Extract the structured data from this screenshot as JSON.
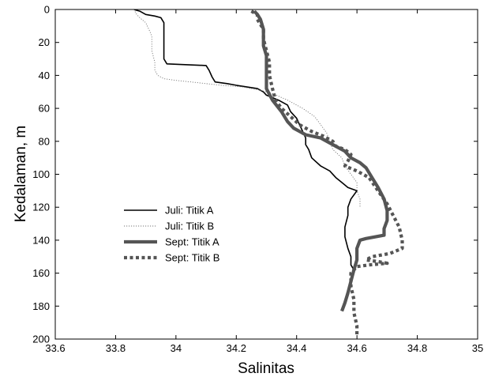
{
  "chart_data": {
    "type": "line",
    "xlabel": "Salinitas",
    "ylabel": "Kedalaman, m",
    "xlim": [
      33.6,
      35
    ],
    "ylim": [
      200,
      0
    ],
    "y_inverted": true,
    "grid": false,
    "legend_position": "left-center",
    "xticks": [
      "33.6",
      "33.8",
      "34",
      "34.2",
      "34.4",
      "34.6",
      "34.8",
      "35"
    ],
    "yticks": [
      "0",
      "20",
      "40",
      "60",
      "80",
      "100",
      "120",
      "140",
      "160",
      "180",
      "200"
    ],
    "series": [
      {
        "name": "Juli: Titik A",
        "color": "#000000",
        "style": "solid-thin",
        "points": [
          [
            33.86,
            0
          ],
          [
            33.88,
            1
          ],
          [
            33.89,
            2
          ],
          [
            33.9,
            3
          ],
          [
            33.93,
            4
          ],
          [
            33.95,
            5
          ],
          [
            33.96,
            8
          ],
          [
            33.96,
            15
          ],
          [
            33.96,
            30
          ],
          [
            33.97,
            33
          ],
          [
            34.1,
            34
          ],
          [
            34.11,
            37
          ],
          [
            34.12,
            41
          ],
          [
            34.13,
            44
          ],
          [
            34.17,
            45
          ],
          [
            34.2,
            46
          ],
          [
            34.27,
            48
          ],
          [
            34.29,
            50
          ],
          [
            34.3,
            52
          ],
          [
            34.34,
            55
          ],
          [
            34.37,
            58
          ],
          [
            34.38,
            62
          ],
          [
            34.4,
            66
          ],
          [
            34.41,
            70
          ],
          [
            34.42,
            74
          ],
          [
            34.43,
            78
          ],
          [
            34.43,
            82
          ],
          [
            34.44,
            85
          ],
          [
            34.45,
            90
          ],
          [
            34.48,
            95
          ],
          [
            34.51,
            98
          ],
          [
            34.53,
            102
          ],
          [
            34.55,
            105
          ],
          [
            34.57,
            108
          ],
          [
            34.6,
            110
          ],
          [
            34.58,
            115
          ],
          [
            34.57,
            120
          ],
          [
            34.57,
            125
          ],
          [
            34.56,
            132
          ],
          [
            34.56,
            138
          ],
          [
            34.57,
            145
          ],
          [
            34.58,
            150
          ],
          [
            34.58,
            155
          ],
          [
            34.59,
            158
          ]
        ]
      },
      {
        "name": "Juli: Titik B",
        "color": "#777777",
        "style": "dotted-thin",
        "points": [
          [
            33.86,
            0
          ],
          [
            33.87,
            3
          ],
          [
            33.88,
            5
          ],
          [
            33.9,
            8
          ],
          [
            33.91,
            12
          ],
          [
            33.92,
            16
          ],
          [
            33.92,
            25
          ],
          [
            33.93,
            32
          ],
          [
            33.93,
            37
          ],
          [
            33.94,
            40
          ],
          [
            33.96,
            42
          ],
          [
            34.0,
            43
          ],
          [
            34.05,
            44
          ],
          [
            34.1,
            45
          ],
          [
            34.15,
            46
          ],
          [
            34.22,
            47
          ],
          [
            34.28,
            49
          ],
          [
            34.32,
            51
          ],
          [
            34.37,
            55
          ],
          [
            34.42,
            60
          ],
          [
            34.46,
            65
          ],
          [
            34.48,
            70
          ],
          [
            34.5,
            75
          ],
          [
            34.51,
            80
          ],
          [
            34.52,
            85
          ],
          [
            34.55,
            90
          ],
          [
            34.56,
            95
          ],
          [
            34.58,
            100
          ],
          [
            34.6,
            105
          ],
          [
            34.6,
            110
          ],
          [
            34.61,
            115
          ],
          [
            34.61,
            120
          ]
        ]
      },
      {
        "name": "Sept: Titik A",
        "color": "#555555",
        "style": "solid-thick",
        "points": [
          [
            34.26,
            1
          ],
          [
            34.27,
            3
          ],
          [
            34.28,
            6
          ],
          [
            34.29,
            12
          ],
          [
            34.29,
            18
          ],
          [
            34.29,
            22
          ],
          [
            34.3,
            28
          ],
          [
            34.3,
            35
          ],
          [
            34.3,
            42
          ],
          [
            34.3,
            48
          ],
          [
            34.32,
            55
          ],
          [
            34.35,
            62
          ],
          [
            34.37,
            68
          ],
          [
            34.39,
            72
          ],
          [
            34.43,
            76
          ],
          [
            34.48,
            78
          ],
          [
            34.52,
            82
          ],
          [
            34.56,
            86
          ],
          [
            34.58,
            90
          ],
          [
            34.61,
            93
          ],
          [
            34.63,
            96
          ],
          [
            34.65,
            102
          ],
          [
            34.67,
            108
          ],
          [
            34.69,
            115
          ],
          [
            34.7,
            122
          ],
          [
            34.7,
            128
          ],
          [
            34.69,
            133
          ],
          [
            34.69,
            137
          ],
          [
            34.66,
            138
          ],
          [
            34.63,
            139
          ],
          [
            34.61,
            140
          ],
          [
            34.6,
            145
          ],
          [
            34.6,
            152
          ],
          [
            34.59,
            158
          ],
          [
            34.58,
            165
          ],
          [
            34.57,
            172
          ],
          [
            34.56,
            178
          ],
          [
            34.55,
            183
          ]
        ]
      },
      {
        "name": "Sept: Titik B",
        "color": "#555555",
        "style": "dotted-thick",
        "points": [
          [
            34.25,
            1
          ],
          [
            34.27,
            3
          ],
          [
            34.27,
            6
          ],
          [
            34.29,
            12
          ],
          [
            34.29,
            18
          ],
          [
            34.3,
            25
          ],
          [
            34.31,
            32
          ],
          [
            34.31,
            40
          ],
          [
            34.32,
            48
          ],
          [
            34.33,
            55
          ],
          [
            34.35,
            60
          ],
          [
            34.38,
            65
          ],
          [
            34.41,
            70
          ],
          [
            34.45,
            74
          ],
          [
            34.49,
            77
          ],
          [
            34.52,
            80
          ],
          [
            34.53,
            83
          ],
          [
            34.56,
            85
          ],
          [
            34.58,
            88
          ],
          [
            34.57,
            92
          ],
          [
            34.56,
            95
          ],
          [
            34.6,
            98
          ],
          [
            34.64,
            102
          ],
          [
            34.67,
            110
          ],
          [
            34.7,
            118
          ],
          [
            34.72,
            125
          ],
          [
            34.74,
            132
          ],
          [
            34.75,
            140
          ],
          [
            34.75,
            145
          ],
          [
            34.71,
            148
          ],
          [
            34.65,
            150
          ],
          [
            34.63,
            152
          ],
          [
            34.67,
            153
          ],
          [
            34.7,
            154
          ],
          [
            34.64,
            155
          ],
          [
            34.6,
            156
          ],
          [
            34.58,
            160
          ],
          [
            34.58,
            168
          ],
          [
            34.59,
            176
          ],
          [
            34.59,
            184
          ],
          [
            34.6,
            192
          ],
          [
            34.6,
            198
          ]
        ]
      }
    ]
  }
}
